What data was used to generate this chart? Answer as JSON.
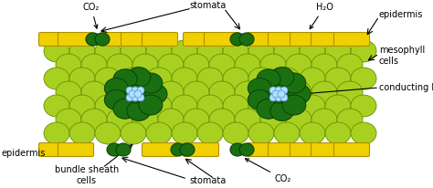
{
  "fig_width": 4.74,
  "fig_height": 2.06,
  "dpi": 100,
  "bg_color": "#ffffff",
  "yellow_color": "#f0d000",
  "yellow_edge": "#b09000",
  "light_green": "#a8d020",
  "light_green_edge": "#6a9000",
  "dark_green": "#1a7010",
  "dark_green_edge": "#0a4008",
  "blue_color": "#b0e0ff",
  "blue_edge": "#5090cc",
  "text_color": "#000000",
  "labels": {
    "co2_top": "CO₂",
    "stomata_top": "stomata",
    "h2o": "H₂O",
    "epidermis_top": "epidermis",
    "mesophyll": "mesophyll\ncells",
    "conducting": "conducting bundles",
    "epidermis_bot": "epidermis",
    "bundle_sheath": "bundle sheath\ncells",
    "stomata_bot": "stomata",
    "co2_bot": "CO₂"
  }
}
